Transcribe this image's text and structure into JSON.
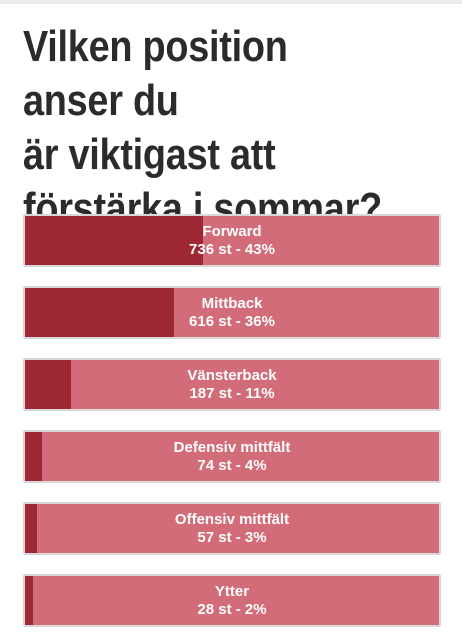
{
  "poll": {
    "question_lines": [
      "Vilken position anser du",
      "är viktigast att",
      "förstärka i sommar?"
    ],
    "options": [
      {
        "label": "Forward",
        "stats": "736 st - 43%",
        "percent": 43
      },
      {
        "label": "Mittback",
        "stats": "616 st - 36%",
        "percent": 36
      },
      {
        "label": "Vänsterback",
        "stats": "187 st - 11%",
        "percent": 11
      },
      {
        "label": "Defensiv mittfält",
        "stats": "74 st - 4%",
        "percent": 4
      },
      {
        "label": "Offensiv mittfält",
        "stats": "57 st - 3%",
        "percent": 3
      },
      {
        "label": "Ytter",
        "stats": "28 st - 2%",
        "percent": 2
      }
    ]
  },
  "colors": {
    "bar_background": "#d16c78",
    "bar_fill": "#9d2833",
    "text": "#2b2b2b"
  }
}
